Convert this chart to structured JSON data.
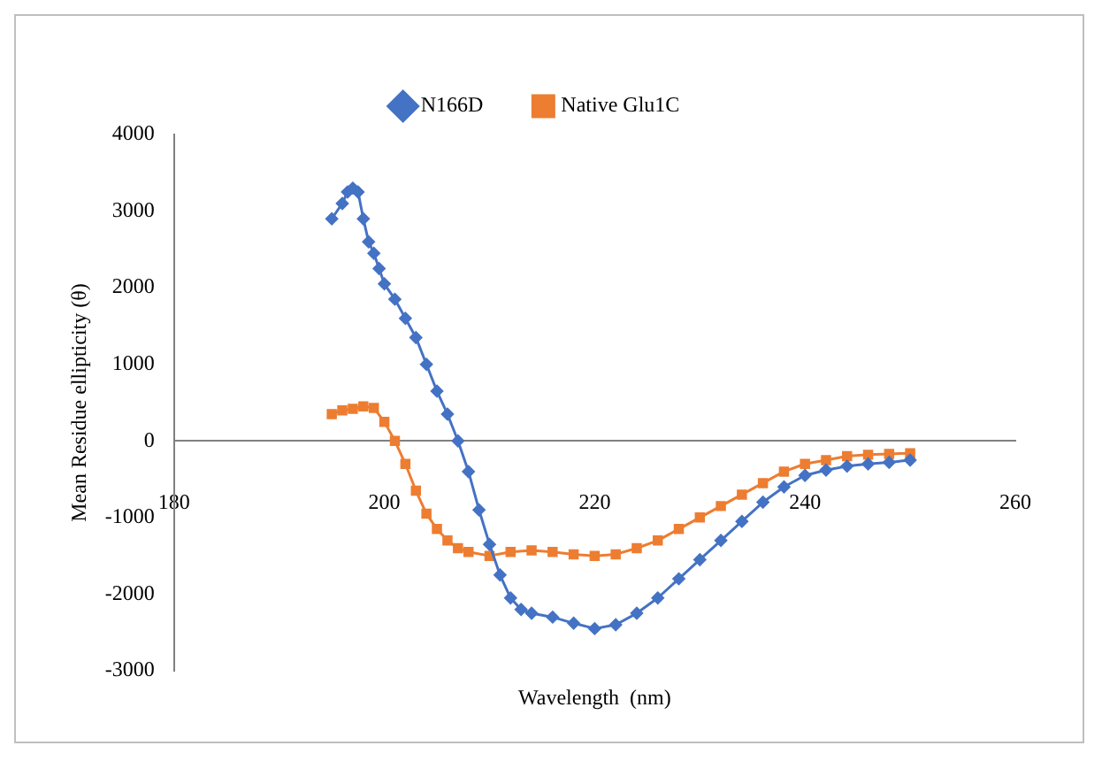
{
  "chart_data": {
    "type": "line",
    "xlabel": "Wavelength  (nm)",
    "ylabel": "Mean Residue ellipticity (θ)",
    "xlim": [
      180,
      260
    ],
    "xticks": [
      180,
      200,
      220,
      240,
      260
    ],
    "ylim": [
      -3000,
      4000
    ],
    "yticks": [
      -3000,
      -2000,
      -1000,
      0,
      1000,
      2000,
      3000,
      4000
    ],
    "grid": false,
    "legend": "top",
    "series": [
      {
        "name": "N166D",
        "color": "#4472c4",
        "marker": "diamond",
        "x": [
          195,
          196,
          196.5,
          197,
          197.5,
          198,
          198.5,
          199,
          199.5,
          200,
          201,
          202,
          203,
          204,
          205,
          206,
          207,
          208,
          209,
          210,
          211,
          212,
          213,
          214,
          216,
          218,
          220,
          222,
          224,
          226,
          228,
          230,
          232,
          234,
          236,
          238,
          240,
          242,
          244,
          246,
          248,
          250
        ],
        "values": [
          2900,
          3100,
          3250,
          3300,
          3250,
          2900,
          2600,
          2450,
          2250,
          2050,
          1850,
          1600,
          1350,
          1000,
          650,
          350,
          0,
          -400,
          -900,
          -1350,
          -1750,
          -2050,
          -2200,
          -2250,
          -2300,
          -2380,
          -2450,
          -2400,
          -2250,
          -2050,
          -1800,
          -1550,
          -1300,
          -1050,
          -800,
          -600,
          -450,
          -380,
          -330,
          -300,
          -280,
          -250
        ]
      },
      {
        "name": "Native Glu1C",
        "color": "#ed7d31",
        "marker": "square",
        "x": [
          195,
          196,
          197,
          198,
          199,
          200,
          201,
          202,
          203,
          204,
          205,
          206,
          207,
          208,
          210,
          212,
          214,
          216,
          218,
          220,
          222,
          224,
          226,
          228,
          230,
          232,
          234,
          236,
          238,
          240,
          242,
          244,
          246,
          248,
          250
        ],
        "values": [
          350,
          400,
          420,
          450,
          430,
          250,
          0,
          -300,
          -650,
          -950,
          -1150,
          -1300,
          -1400,
          -1450,
          -1500,
          -1450,
          -1430,
          -1450,
          -1480,
          -1500,
          -1480,
          -1400,
          -1300,
          -1150,
          -1000,
          -850,
          -700,
          -550,
          -400,
          -300,
          -250,
          -200,
          -180,
          -170,
          -160
        ]
      }
    ]
  }
}
